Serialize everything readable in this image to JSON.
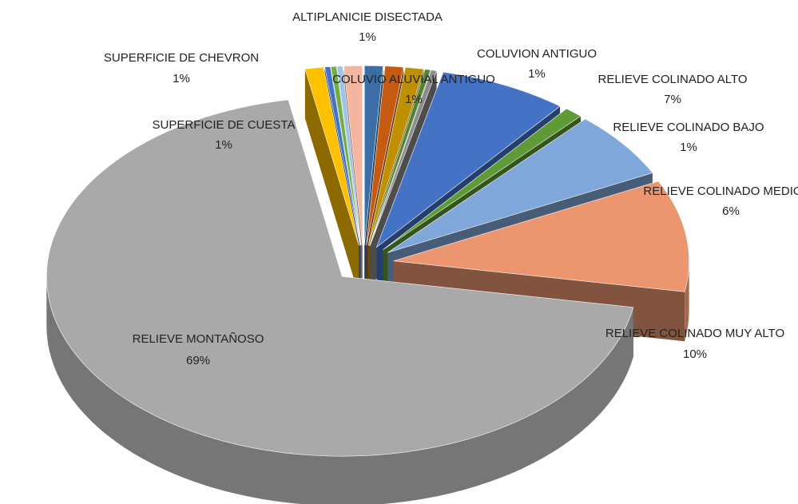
{
  "chart_data": {
    "type": "pie",
    "categories": [
      "ALTIPLANICIE DISECTADA",
      "COLUVIO ALUVIAL ANTIGUO",
      "COLUVION ANTIGUO",
      null,
      null,
      "RELIEVE COLINADO ALTO",
      "RELIEVE COLINADO BAJO",
      "RELIEVE COLINADO MEDIO",
      "RELIEVE COLINADO MUY ALTO",
      "RELIEVE MONTAÑOSO",
      "SUPERFICIE DE CUESTA",
      null,
      null,
      null,
      "SUPERFICIE DE CHEVRON"
    ],
    "values": [
      1,
      1,
      1,
      0.3,
      0.3,
      7,
      1,
      6,
      10,
      69,
      1,
      0.3,
      0.3,
      0.3,
      1
    ],
    "value_labels": [
      "1%",
      "1%",
      "1%",
      null,
      null,
      "7%",
      "1%",
      "6%",
      "10%",
      "69%",
      "1%",
      null,
      null,
      null,
      "1%"
    ],
    "colors": [
      "#3a6ea5",
      "#c55a11",
      "#bf9000",
      "#548235",
      "#8c8c8c",
      "#4472c4",
      "#5e9a36",
      "#7fa7d9",
      "#ec9670",
      "#a9a9a9",
      "#ffc000",
      "#4472c4",
      "#70ad47",
      "#9dc3e6",
      "#f4b6a0"
    ]
  }
}
